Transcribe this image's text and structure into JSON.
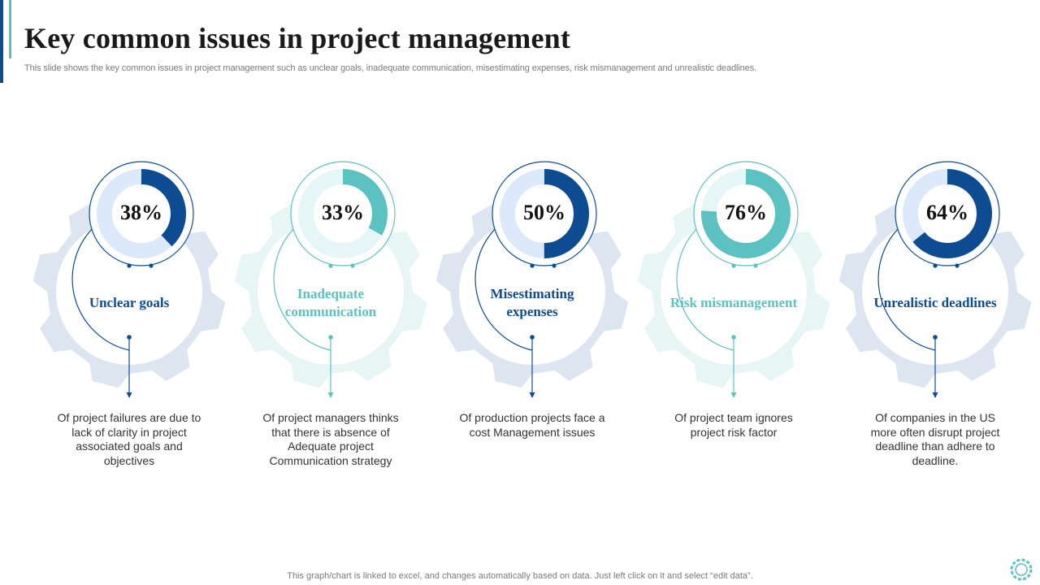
{
  "page": {
    "title": "Key common issues in project management",
    "subtitle": "This slide shows the key common issues in project management such as unclear goals, inadequate communication, misestimating expenses, risk mismanagement and unrealistic deadlines.",
    "footer_note": "This graph/chart is linked to excel,  and changes automatically based on data. Just left click on it and select “edit data”."
  },
  "colors": {
    "dark_blue": "#0e4c92",
    "teal": "#5bc2c1",
    "dark_gear": "#dde5f1",
    "teal_gear": "#e8f5f5",
    "dark_ring_bg": "#dce9fa",
    "teal_ring_bg": "#e6f6f6"
  },
  "chart_data": {
    "type": "pie",
    "title": "Key common issues in project management",
    "categories": [
      "Unclear goals",
      "Inadequate communication",
      "Misestimating expenses",
      "Risk mismanagement",
      "Unrealistic deadlines"
    ],
    "values": [
      38,
      33,
      50,
      76,
      64
    ],
    "unit": "%",
    "items": [
      {
        "label": "Unclear goals",
        "value": 38,
        "value_label": "38%",
        "theme": "dark",
        "description": "Of project failures are due to lack of clarity in project associated goals and objectives"
      },
      {
        "label": "Inadequate communication",
        "value": 33,
        "value_label": "33%",
        "theme": "teal",
        "description": "Of project managers thinks that there is absence of Adequate project Communication strategy"
      },
      {
        "label": "Misestimating expenses",
        "value": 50,
        "value_label": "50%",
        "theme": "dark",
        "description": "Of production projects face a cost Management issues"
      },
      {
        "label": "Risk mismanagement",
        "value": 76,
        "value_label": "76%",
        "theme": "teal",
        "description": "Of project team ignores project risk factor"
      },
      {
        "label": "Unrealistic deadlines",
        "value": 64,
        "value_label": "64%",
        "theme": "dark",
        "description": "Of companies in the US more often disrupt project deadline than adhere to deadline."
      }
    ]
  }
}
